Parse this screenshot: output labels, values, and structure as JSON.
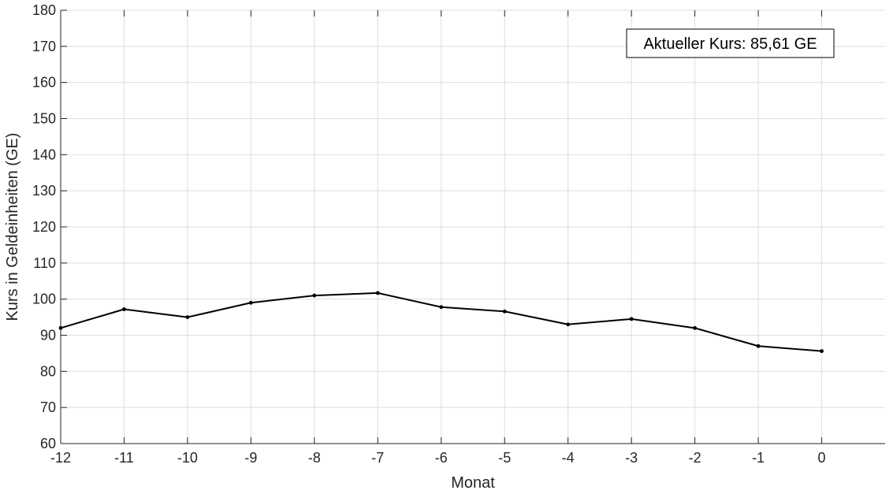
{
  "chart_data": {
    "type": "line",
    "title": "",
    "xlabel": "Monat",
    "ylabel": "Kurs in Geldeinheiten (GE)",
    "xlim": [
      -12,
      1
    ],
    "ylim": [
      60,
      180
    ],
    "xticks": [
      -12,
      -11,
      -10,
      -9,
      -8,
      -7,
      -6,
      -5,
      -4,
      -3,
      -2,
      -1,
      0
    ],
    "yticks": [
      60,
      70,
      80,
      90,
      100,
      110,
      120,
      130,
      140,
      150,
      160,
      170,
      180
    ],
    "grid": true,
    "legend": "none",
    "x": [
      -12,
      -11,
      -10,
      -9,
      -8,
      -7,
      -6,
      -5,
      -4,
      -3,
      -2,
      -1,
      0
    ],
    "series": [
      {
        "values": [
          92.0,
          97.2,
          95.0,
          99.0,
          101.0,
          101.7,
          97.8,
          96.6,
          93.0,
          94.5,
          92.0,
          87.0,
          85.61
        ],
        "color": "#000000"
      }
    ],
    "annotation": {
      "text": "Aktueller Kurs: 85,61 GE",
      "placement": "top-right"
    }
  }
}
